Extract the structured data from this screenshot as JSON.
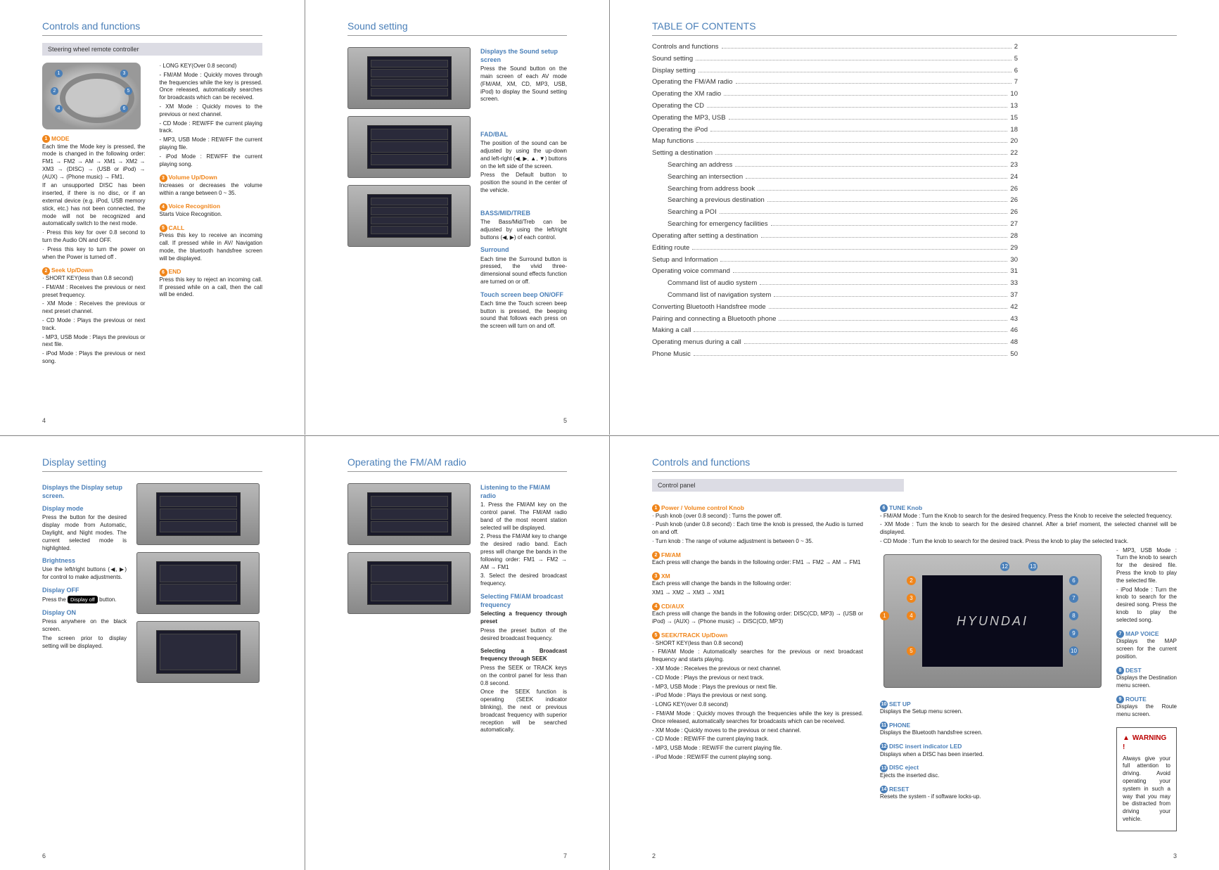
{
  "colors": {
    "accent": "#4a7fb8",
    "orange": "#f0851a",
    "grey_bg": "#dcdce4"
  },
  "page4": {
    "title": "Controls and functions",
    "sub": "Steering wheel remote controller",
    "mode_title": "MODE",
    "mode_body": "Each time the Mode key is pressed, the mode is changed in the following order: FM1 → FM2 → AM → XM1 → XM2 → XM3 → (DISC) → (USB or iPod) → (AUX) → (Phone music) → FM1.",
    "mode_body2": "If an unsupported DISC has been inserted, if there is no disc, or if an external device (e.g. iPod, USB memory stick, etc.) has not been connected, the mode will not be recognized and automatically switch to the next mode.",
    "mode_b1": "· Press this key for over 0.8 second to turn the Audio ON and OFF.",
    "mode_b2": "· Press this key to turn the power on when the Power is turned off .",
    "seek_title": "Seek Up/Down",
    "seek_sub": "· SHORT KEY(less than 0.8 second)",
    "seek_b1": "- FM/AM : Receives the previous or next preset frequency.",
    "seek_b2": "- XM Mode : Receives the previous or next preset channel.",
    "seek_b3": "- CD Mode : Plays the previous or next track.",
    "seek_b4": "- MP3, USB Mode : Plays the previous or next file.",
    "seek_b5": "- iPod Mode : Plays the previous or next song.",
    "long_sub": "· LONG KEY(Over 0.8 second)",
    "long_b1": "- FM/AM Mode : Quickly moves through the frequencies while the key is pressed. Once released, automatically searches for broadcasts which can be received.",
    "long_b2": "- XM Mode : Quickly moves to the previous or next channel.",
    "long_b3": "- CD Mode : REW/FF the current playing track.",
    "long_b4": "- MP3, USB Mode : REW/FF the current playing file.",
    "long_b5": "- iPod Mode : REW/FF the current playing song.",
    "vol_title": "Volume Up/Down",
    "vol_body": "Increases or decreases the volume within a range between 0 ~ 35.",
    "voice_title": "Voice Recognition",
    "voice_body": "Starts Voice Recognition.",
    "call_title": "CALL",
    "call_body": "Press this key to receive an incoming call. If pressed while in AV/ Navigation mode, the bluetooth handsfree screen will be displayed.",
    "end_title": "END",
    "end_body": "Press this key to reject an incoming call. If pressed while on a call, then the call will be ended."
  },
  "page5": {
    "title": "Sound setting",
    "s1_title": "Displays the Sound setup screen",
    "s1_body": "Press the Sound button on the main screen of each AV mode (FM/AM, XM, CD, MP3, USB, iPod) to display the Sound setting screen.",
    "s2_title": "FAD/BAL",
    "s2_body": "The position of the sound can be adjusted by using the up-down and left-right (◀, ▶, ▲, ▼) buttons on the left side of the screen.",
    "s2_body2": "Press the Default button to position the sound in the center of the vehicle.",
    "s3_title": "BASS/MID/TREB",
    "s3_body": "The Bass/Mid/Treb can be adjusted by using the left/right buttons (◀, ▶) of each control.",
    "s4_title": "Surround",
    "s4_body": "Each time the Surround button is pressed, the vivid three-dimensional sound effects function are turned on or off.",
    "s5_title": "Touch screen beep ON/OFF",
    "s5_body": "Each time the Touch screen beep button is pressed, the beeping sound that follows each press on the screen will turn on and off."
  },
  "toc": {
    "title": "TABLE  OF CONTENTS",
    "rows": [
      {
        "t": "Controls and functions",
        "p": "2",
        "i": 0
      },
      {
        "t": "Sound setting",
        "p": "5",
        "i": 0
      },
      {
        "t": "Display setting",
        "p": "6",
        "i": 0
      },
      {
        "t": "Operating the FM/AM radio",
        "p": "7",
        "i": 0
      },
      {
        "t": "Operating the XM radio",
        "p": "10",
        "i": 0
      },
      {
        "t": "Operating the CD",
        "p": "13",
        "i": 0
      },
      {
        "t": "Operating the MP3, USB",
        "p": "15",
        "i": 0
      },
      {
        "t": "Operating the iPod",
        "p": "18",
        "i": 0
      },
      {
        "t": "Map functions",
        "p": "20",
        "i": 0
      },
      {
        "t": "Setting a destination",
        "p": "22",
        "i": 0
      },
      {
        "t": "Searching an address",
        "p": "23",
        "i": 1
      },
      {
        "t": "Searching an intersection",
        "p": "24",
        "i": 1
      },
      {
        "t": "Searching from address book",
        "p": "26",
        "i": 1
      },
      {
        "t": "Searching a previous destination",
        "p": "26",
        "i": 1
      },
      {
        "t": "Searching a POI",
        "p": "26",
        "i": 1
      },
      {
        "t": "Searching for emergency facilities",
        "p": "27",
        "i": 1
      },
      {
        "t": "Operating after setting a destination",
        "p": "28",
        "i": 0
      },
      {
        "t": "Editing route",
        "p": "29",
        "i": 0
      },
      {
        "t": "Setup and Information",
        "p": "30",
        "i": 0
      },
      {
        "t": "Operating voice command",
        "p": "31",
        "i": 0
      },
      {
        "t": "Command list of audio system",
        "p": "33",
        "i": 1
      },
      {
        "t": "Command list of navigation system",
        "p": "37",
        "i": 1
      },
      {
        "t": "Converting Bluetooth Handsfree mode",
        "p": "42",
        "i": 0
      },
      {
        "t": "Pairing and connecting a Bluetooth phone",
        "p": "43",
        "i": 0
      },
      {
        "t": "Making a call",
        "p": "46",
        "i": 0
      },
      {
        "t": "Operating menus during a call",
        "p": "48",
        "i": 0
      },
      {
        "t": "Phone Music",
        "p": "50",
        "i": 0
      }
    ]
  },
  "page6": {
    "title": "Display setting",
    "d1_title": "Displays the Display setup screen.",
    "d2_title": "Display mode",
    "d2_body": "Press the button for the desired display mode from Automatic, Daylight, and Night modes. The current selected mode is highlighted.",
    "d3_title": "Brightness",
    "d3_body": "Use the left/right buttons (◀, ▶) for control to make adjustments.",
    "d4_title": "Display OFF",
    "d4_pre": "Press the ",
    "d4_btn": "Display off",
    "d4_post": " button.",
    "d5_title": "Display ON",
    "d5_body": "Press anywhere on the black screen.",
    "d5_body2": "The screen prior to display setting will be displayed."
  },
  "page7": {
    "title": "Operating the FM/AM radio",
    "r1_title": "Listening to the FM/AM radio",
    "r1_1": "1. Press the FM/AM key on the control panel. The FM/AM radio band of the most recent station selected will be displayed.",
    "r1_2": "2. Press the FM/AM key to change the desired radio band. Each press will change the bands in the following order: FM1 → FM2 → AM → FM1",
    "r1_3": "3. Select the desired broadcast frequency.",
    "r2_title": "Selecting FM/AM broadcast frequency",
    "r2a_title": "Selecting a frequency through preset",
    "r2a_body": "Press the preset button of the desired broadcast frequency.",
    "r2b_title": "Selecting a Broadcast frequency through SEEK",
    "r2b_body": "Press the SEEK or TRACK keys on the control panel for less than 0.8 second.",
    "r2b_body2": "Once the SEEK function is operating (SEEK indicator blinking), the next or previous broadcast frequency with superior reception will be searched automatically."
  },
  "page2": {
    "title": "Controls and functions",
    "sub": "Control panel",
    "c1_title": "Power / Volume control Knob",
    "c1_b1": "· Push knob (over 0.8 second) : Turns the power off.",
    "c1_b2": "· Push knob (under 0.8 second) : Each time the knob is pressed, the Audio is turned on and off.",
    "c1_b3": "· Turn knob : The range of volume adjustment is between 0 ~ 35.",
    "c2_title": "FM/AM",
    "c2_body": "Each press will change the bands in the following order: FM1 → FM2 → AM → FM1",
    "c3_title": "XM",
    "c3_body": "Each press will change the bands in the following order:",
    "c3_body2": "XM1 → XM2 → XM3 → XM1",
    "c4_title": "CD/AUX",
    "c4_body": "Each press will change the bands in the following order: DISC(CD, MP3) → (USB or iPod) → (AUX) → (Phone music) → DISC(CD, MP3)",
    "c5_title": "SEEK/TRACK Up/Down",
    "c5_sub": "· SHORT KEY(less than 0.8 second)",
    "c5_b1": "- FM/AM Mode : Automatically searches for the previous or next broadcast frequency and starts playing.",
    "c5_b2": "- XM Mode : Receives the previous or next channel.",
    "c5_b3": "- CD Mode : Plays the previous or next track.",
    "c5_b4": "- MP3, USB Mode : Plays the previous or next file.",
    "c5_b5": "- iPod Mode : Plays the previous or next song.",
    "c5_sub2": "· LONG KEY(over 0.8 second)",
    "c5_l1": "- FM/AM Mode : Quickly moves through the frequencies while the key is pressed. Once released, automatically searches for broadcasts which can be received.",
    "c5_l2": "- XM Mode : Quickly moves to the previous or next channel.",
    "c5_l3": "- CD Mode : REW/FF the current playing track.",
    "c5_l4": "- MP3, USB Mode : REW/FF the current playing file.",
    "c5_l5": "- iPod Mode : REW/FF the current playing song."
  },
  "page3": {
    "tune_title": "TUNE Knob",
    "tune_b1": "- FM/AM Mode : Turn the Knob to search for the desired frequency. Press the Knob to receive the selected frequency.",
    "tune_b2": "- XM Mode : Turn the knob to search for the desired channel. After a brief moment, the selected channel will be displayed.",
    "tune_b3": "- CD Mode : Turn the knob to search for the desired track. Press the knob to play the selected track.",
    "tune_b4": "- MP3, USB Mode : Turn the knob to search for the desired file. Press the knob to play the selected file.",
    "tune_b5": "- iPod Mode : Turn the knob to search for the desired song. Press the knob to play the selected song.",
    "map_title": "MAP VOICE",
    "map_body": "Displays the MAP screen for the current position.",
    "dest_title": "DEST",
    "dest_body": "Displays the Destination menu screen.",
    "route_title": "ROUTE",
    "route_body": "Displays the Route menu screen.",
    "setup_title": "SET UP",
    "setup_body": "Displays the Setup menu screen.",
    "phone_title": "PHONE",
    "phone_body": "Displays the Bluetooth handsfree screen.",
    "disc_title": "DISC insert indicator LED",
    "disc_body": "Displays when a DISC has been inserted.",
    "eject_title": "DISC eject",
    "eject_body": "Ejects the inserted disc.",
    "reset_title": "RESET",
    "reset_body": "Resets the system - if software locks-up.",
    "warn_title": "WARNING !",
    "warn_body": "Always give your full attention to driving. Avoid operating your system in such a way that you may be distracted from driving your vehicle.",
    "brand": "HYUNDAI"
  },
  "nums": {
    "p4": "4",
    "p5": "5",
    "p6": "6",
    "p7": "7",
    "p2": "2",
    "p3": "3"
  }
}
